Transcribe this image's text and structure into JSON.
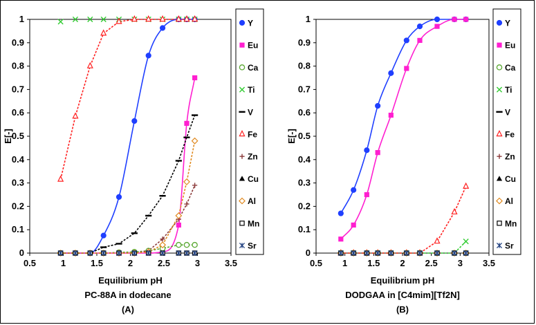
{
  "chart_data": [
    {
      "type": "line",
      "title": "",
      "subtitle": "PC-88A in dodecane",
      "panel_label": "(A)",
      "xlabel": "Equilibrium pH",
      "ylabel": "E[-]",
      "xlim": [
        0.5,
        3.5
      ],
      "ylim": [
        0,
        1
      ],
      "xticks": [
        "0.5",
        "1",
        "1.5",
        "2",
        "2.5",
        "3",
        "3.5"
      ],
      "yticks": [
        "0",
        "0.1",
        "0.2",
        "0.3",
        "0.4",
        "0.5",
        "0.6",
        "0.7",
        "0.8",
        "0.9",
        "1"
      ],
      "grid": false,
      "legend_position": "right",
      "series": [
        {
          "name": "Y",
          "color": "#1f3fff",
          "marker": "filled-circle",
          "line": "solid",
          "fit": true,
          "x": [
            0.96,
            1.18,
            1.4,
            1.6,
            1.83,
            2.06,
            2.27,
            2.48,
            2.72,
            2.84,
            2.96
          ],
          "y": [
            0,
            0,
            0,
            0.075,
            0.24,
            0.565,
            0.845,
            0.963,
            1,
            1,
            1
          ]
        },
        {
          "name": "Eu",
          "color": "#ff1fd0",
          "marker": "filled-square",
          "line": "solid",
          "fit": true,
          "x": [
            0.96,
            1.18,
            1.4,
            1.6,
            1.83,
            2.06,
            2.27,
            2.48,
            2.72,
            2.84,
            2.96
          ],
          "y": [
            0,
            0,
            0,
            0,
            0,
            0,
            0,
            0.005,
            0.12,
            0.555,
            0.75
          ]
        },
        {
          "name": "Ca",
          "color": "#5aa832",
          "marker": "open-circle",
          "line": "dashed",
          "x": [
            0.96,
            1.18,
            1.4,
            1.6,
            1.83,
            2.06,
            2.27,
            2.48,
            2.72,
            2.84,
            2.96
          ],
          "y": [
            0,
            0,
            0,
            0,
            0.003,
            0.005,
            0.01,
            0.02,
            0.035,
            0.035,
            0.035
          ]
        },
        {
          "name": "Ti",
          "color": "#33cc33",
          "marker": "x",
          "line": "none",
          "x": [
            0.96,
            1.18,
            1.4,
            1.6,
            1.83,
            2.06,
            2.27,
            2.48,
            2.72,
            2.84,
            2.96
          ],
          "y": [
            0.99,
            1,
            1,
            1,
            1,
            1,
            1,
            1,
            1,
            1,
            1
          ]
        },
        {
          "name": "V",
          "color": "#000000",
          "marker": "dash",
          "line": "dashed",
          "x": [
            0.96,
            1.18,
            1.4,
            1.6,
            1.83,
            2.06,
            2.27,
            2.48,
            2.72,
            2.84,
            2.96
          ],
          "y": [
            0,
            0,
            0,
            0.025,
            0.04,
            0.085,
            0.16,
            0.245,
            0.395,
            0.495,
            0.59
          ]
        },
        {
          "name": "Fe",
          "color": "#ff2020",
          "marker": "open-triangle",
          "line": "dashed",
          "x": [
            0.96,
            1.18,
            1.4,
            1.6,
            1.83,
            2.06,
            2.27,
            2.48,
            2.72,
            2.84,
            2.96
          ],
          "y": [
            0.315,
            0.585,
            0.8,
            0.94,
            0.99,
            1,
            1,
            1,
            1,
            1,
            1
          ]
        },
        {
          "name": "Zn",
          "color": "#8b3a3a",
          "marker": "plus",
          "line": "dashed",
          "x": [
            0.96,
            1.18,
            1.4,
            1.6,
            1.83,
            2.06,
            2.27,
            2.48,
            2.72,
            2.84,
            2.96
          ],
          "y": [
            0,
            0,
            0,
            0,
            0,
            0,
            0.01,
            0.06,
            0.145,
            0.21,
            0.29
          ]
        },
        {
          "name": "Cu",
          "color": "#000000",
          "marker": "filled-triangle",
          "line": "none",
          "x": [
            0.96,
            1.18,
            1.4,
            1.6,
            1.83,
            2.06,
            2.27,
            2.48,
            2.72,
            2.84,
            2.96
          ],
          "y": [
            0,
            0,
            0,
            0,
            0,
            0,
            0,
            0,
            0,
            0,
            0
          ]
        },
        {
          "name": "Al",
          "color": "#e08a20",
          "marker": "open-diamond",
          "line": "dashed",
          "x": [
            0.96,
            1.18,
            1.4,
            1.6,
            1.83,
            2.06,
            2.27,
            2.48,
            2.72,
            2.84,
            2.96
          ],
          "y": [
            0,
            0,
            0,
            0,
            0,
            0,
            0.005,
            0.035,
            0.16,
            0.305,
            0.48
          ]
        },
        {
          "name": "Mn",
          "color": "#000000",
          "marker": "open-square",
          "line": "none",
          "x": [
            0.96,
            1.18,
            1.4,
            1.6,
            1.83,
            2.06,
            2.27,
            2.48,
            2.72,
            2.84,
            2.96
          ],
          "y": [
            0,
            0,
            0,
            0,
            0,
            0,
            0,
            0,
            0,
            0,
            0
          ]
        },
        {
          "name": "Sr",
          "color": "#1f3f7f",
          "marker": "star",
          "line": "none",
          "x": [
            0.96,
            1.18,
            1.4,
            1.6,
            1.83,
            2.06,
            2.27,
            2.48,
            2.72,
            2.84,
            2.96
          ],
          "y": [
            0,
            0,
            0,
            0,
            0,
            0,
            0,
            0,
            0,
            0,
            0
          ]
        }
      ]
    },
    {
      "type": "line",
      "title": "",
      "subtitle": "DODGAA in [C4mim][Tf2N]",
      "panel_label": "(B)",
      "xlabel": "Equilibrium pH",
      "ylabel": "E[-]",
      "xlim": [
        0.5,
        3.5
      ],
      "ylim": [
        0,
        1
      ],
      "xticks": [
        "0.5",
        "1",
        "1.5",
        "2",
        "2.5",
        "3",
        "3.5"
      ],
      "yticks": [
        "0",
        "0.1",
        "0.2",
        "0.3",
        "0.4",
        "0.5",
        "0.6",
        "0.7",
        "0.8",
        "0.9",
        "1"
      ],
      "grid": false,
      "legend_position": "right",
      "series": [
        {
          "name": "Y",
          "color": "#1f3fff",
          "marker": "filled-circle",
          "line": "solid",
          "fit": true,
          "x": [
            0.93,
            1.15,
            1.38,
            1.57,
            1.8,
            2.07,
            2.3,
            2.6,
            2.9,
            3.1
          ],
          "y": [
            0.17,
            0.27,
            0.44,
            0.63,
            0.77,
            0.91,
            0.97,
            1,
            1,
            1
          ]
        },
        {
          "name": "Eu",
          "color": "#ff1fd0",
          "marker": "filled-square",
          "line": "solid",
          "fit": true,
          "x": [
            0.93,
            1.15,
            1.38,
            1.57,
            1.8,
            2.07,
            2.3,
            2.6,
            2.9,
            3.1
          ],
          "y": [
            0.06,
            0.12,
            0.25,
            0.43,
            0.59,
            0.79,
            0.91,
            0.97,
            1,
            1
          ]
        },
        {
          "name": "Ca",
          "color": "#5aa832",
          "marker": "open-circle",
          "line": "none",
          "x": [
            0.93,
            1.15,
            1.38,
            1.57,
            1.8,
            2.07,
            2.3,
            2.6,
            2.9,
            3.1
          ],
          "y": [
            0,
            0,
            0,
            0,
            0,
            0,
            0,
            0,
            0,
            0
          ]
        },
        {
          "name": "Ti",
          "color": "#33cc33",
          "marker": "x",
          "line": "dashed",
          "x": [
            0.93,
            1.15,
            1.38,
            1.57,
            1.8,
            2.07,
            2.3,
            2.6,
            2.9,
            3.1
          ],
          "y": [
            0,
            0,
            0,
            0,
            0,
            0,
            0,
            0,
            0,
            0.05
          ]
        },
        {
          "name": "V",
          "color": "#000000",
          "marker": "dash",
          "line": "none",
          "x": [
            0.93,
            1.15,
            1.38,
            1.57,
            1.8,
            2.07,
            2.3,
            2.6,
            2.9,
            3.1
          ],
          "y": [
            0,
            0,
            0,
            0,
            0,
            0,
            0,
            0,
            0,
            0
          ]
        },
        {
          "name": "Fe",
          "color": "#ff2020",
          "marker": "open-triangle",
          "line": "dashed",
          "x": [
            0.93,
            1.15,
            1.38,
            1.57,
            1.8,
            2.07,
            2.3,
            2.6,
            2.9,
            3.1
          ],
          "y": [
            0,
            0,
            0,
            0,
            0,
            0,
            0,
            0.05,
            0.175,
            0.285
          ]
        },
        {
          "name": "Zn",
          "color": "#8b3a3a",
          "marker": "plus",
          "line": "none",
          "x": [
            0.93,
            1.15,
            1.38,
            1.57,
            1.8,
            2.07,
            2.3,
            2.6,
            2.9,
            3.1
          ],
          "y": [
            0,
            0,
            0,
            0,
            0,
            0,
            0,
            0,
            0,
            0
          ]
        },
        {
          "name": "Cu",
          "color": "#000000",
          "marker": "filled-triangle",
          "line": "none",
          "x": [
            0.93,
            1.15,
            1.38,
            1.57,
            1.8,
            2.07,
            2.3,
            2.6,
            2.9,
            3.1
          ],
          "y": [
            0,
            0,
            0,
            0,
            0,
            0,
            0,
            0,
            0,
            0
          ]
        },
        {
          "name": "Al",
          "color": "#e08a20",
          "marker": "open-diamond",
          "line": "none",
          "x": [
            0.93,
            1.15,
            1.38,
            1.57,
            1.8,
            2.07,
            2.3,
            2.6,
            2.9,
            3.1
          ],
          "y": [
            0,
            0,
            0,
            0,
            0,
            0,
            0,
            0,
            0,
            0
          ]
        },
        {
          "name": "Mn",
          "color": "#000000",
          "marker": "open-square",
          "line": "none",
          "x": [
            0.93,
            1.15,
            1.38,
            1.57,
            1.8,
            2.07,
            2.3,
            2.6,
            2.9,
            3.1
          ],
          "y": [
            0,
            0,
            0,
            0,
            0,
            0,
            0,
            0,
            0,
            0
          ]
        },
        {
          "name": "Sr",
          "color": "#1f3f7f",
          "marker": "star",
          "line": "none",
          "x": [
            0.93,
            1.15,
            1.38,
            1.57,
            1.8,
            2.07,
            2.3,
            2.6,
            2.9,
            3.1
          ],
          "y": [
            0,
            0,
            0,
            0,
            0,
            0,
            0,
            0,
            0,
            0
          ]
        }
      ]
    }
  ]
}
